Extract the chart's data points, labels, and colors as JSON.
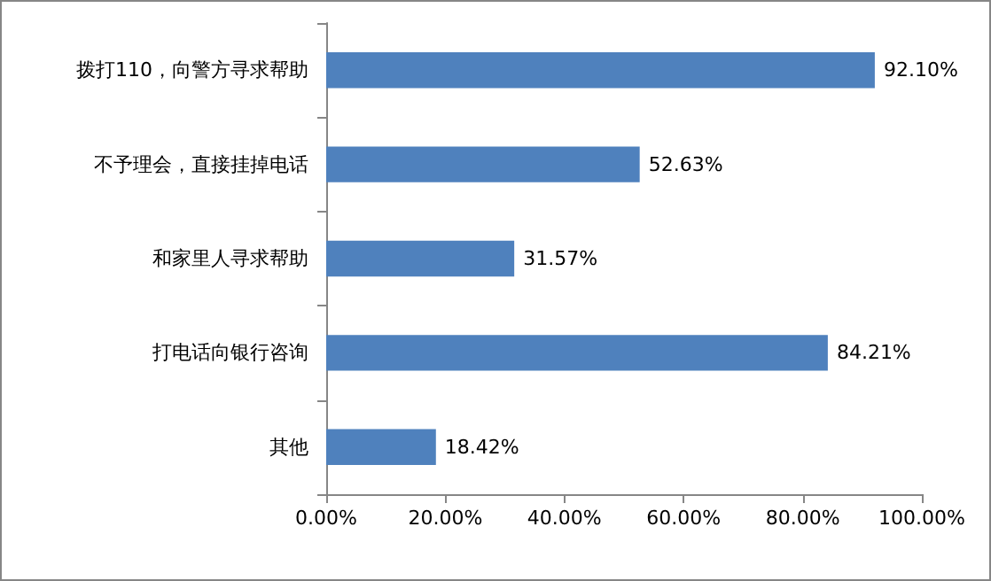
{
  "chart_data": {
    "type": "bar",
    "orientation": "horizontal",
    "categories": [
      "拨打110，向警方寻求帮助",
      "不予理会，直接挂掉电话",
      "和家里人寻求帮助",
      "打电话向银行咨询",
      "其他"
    ],
    "values": [
      92.1,
      52.63,
      31.57,
      84.21,
      18.42
    ],
    "value_labels": [
      "92.10%",
      "52.63%",
      "31.57%",
      "84.21%",
      "18.42%"
    ],
    "color": "#4f81bd",
    "xlim": [
      0,
      100
    ],
    "xticks": [
      {
        "value": 0,
        "label": "0.00%"
      },
      {
        "value": 20,
        "label": "20.00%"
      },
      {
        "value": 40,
        "label": "40.00%"
      },
      {
        "value": 60,
        "label": "60.00%"
      },
      {
        "value": 80,
        "label": "80.00%"
      },
      {
        "value": 100,
        "label": "100.00%"
      }
    ],
    "grid": false
  }
}
